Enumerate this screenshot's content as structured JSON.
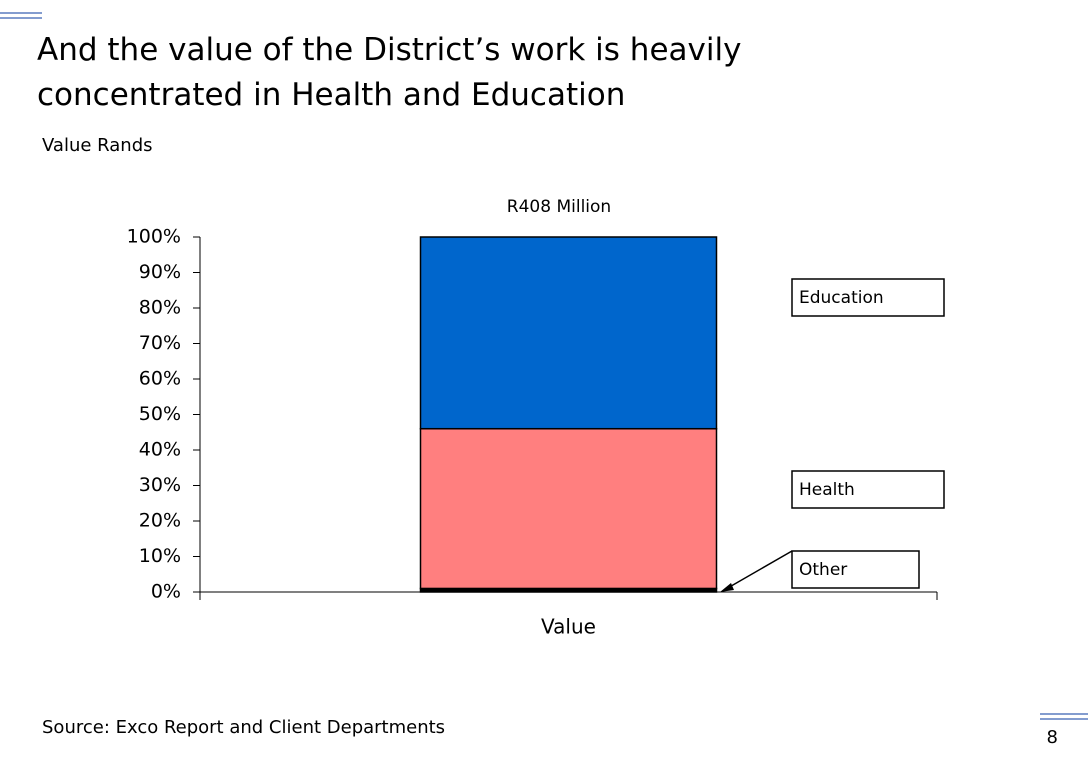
{
  "chart_data": {
    "type": "stacked_bar",
    "title": "And the value of the District’s work is heavily concentrated in Health and Education",
    "subtitle": "Value Rands",
    "annotation": "R408 Million",
    "source": "Source: Exco Report and Client Departments",
    "page_number": "8",
    "categories": [
      "Value"
    ],
    "series": [
      {
        "name": "Other",
        "color": "#000000",
        "values": [
          1
        ]
      },
      {
        "name": "Health",
        "color": "#ff7f7f",
        "values": [
          45
        ]
      },
      {
        "name": "Education",
        "color": "#0066cc",
        "values": [
          54
        ]
      }
    ],
    "ylim": [
      0,
      100
    ],
    "yticks": [
      {
        "value": 0,
        "label": "0%"
      },
      {
        "value": 10,
        "label": "10%"
      },
      {
        "value": 20,
        "label": "20%"
      },
      {
        "value": 30,
        "label": "30%"
      },
      {
        "value": 40,
        "label": "40%"
      },
      {
        "value": 50,
        "label": "50%"
      },
      {
        "value": 60,
        "label": "60%"
      },
      {
        "value": 70,
        "label": "70%"
      },
      {
        "value": 80,
        "label": "80%"
      },
      {
        "value": 90,
        "label": "90%"
      },
      {
        "value": 100,
        "label": "100%"
      }
    ]
  }
}
